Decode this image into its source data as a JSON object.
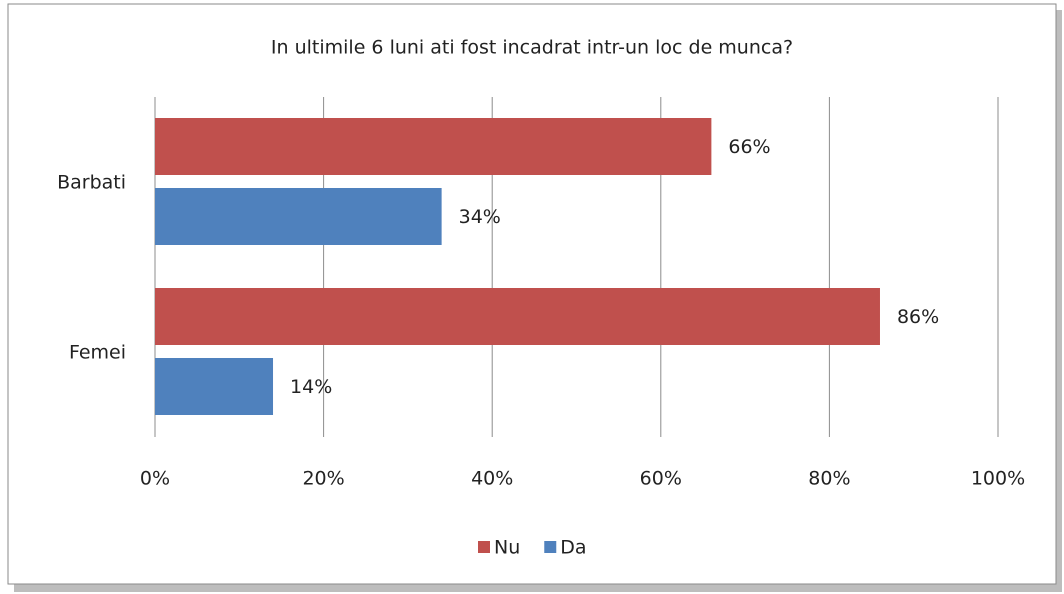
{
  "chart_data": {
    "type": "bar",
    "orientation": "horizontal",
    "title": "In ultimile 6 luni ati fost incadrat intr-un loc de munca?",
    "categories": [
      "Barbati",
      "Femei"
    ],
    "series": [
      {
        "name": "Nu",
        "color": "#c0504d",
        "values": [
          66,
          86
        ],
        "value_labels": [
          "66%",
          "86%"
        ]
      },
      {
        "name": "Da",
        "color": "#4f81bd",
        "values": [
          34,
          14
        ],
        "value_labels": [
          "34%",
          "14%"
        ]
      }
    ],
    "xlim": [
      0,
      100
    ],
    "xticks": [
      {
        "value": 0,
        "label": "0%"
      },
      {
        "value": 20,
        "label": "20%"
      },
      {
        "value": 40,
        "label": "40%"
      },
      {
        "value": 60,
        "label": "60%"
      },
      {
        "value": 80,
        "label": "80%"
      },
      {
        "value": 100,
        "label": "100%"
      }
    ],
    "grid": true,
    "legend": "bottom"
  }
}
